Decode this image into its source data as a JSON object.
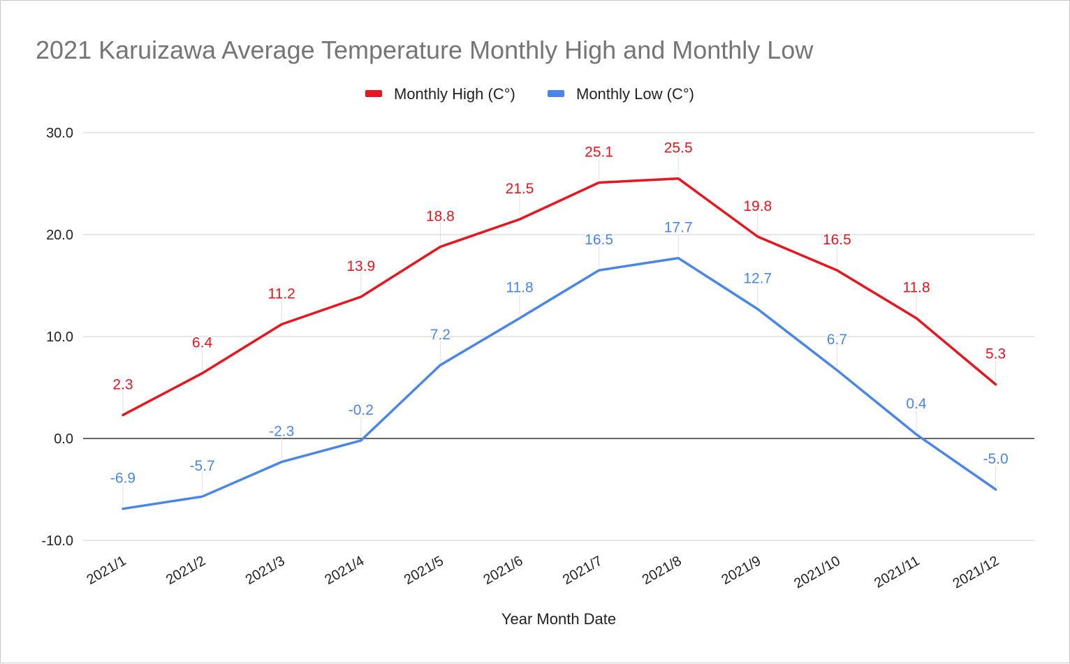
{
  "chart_data": {
    "type": "line",
    "title": "2021 Karuizawa Average Temperature Monthly High and Monthly Low",
    "xlabel": "Year Month Date",
    "ylabel": "",
    "categories": [
      "2021/1",
      "2021/2",
      "2021/3",
      "2021/4",
      "2021/5",
      "2021/6",
      "2021/7",
      "2021/8",
      "2021/9",
      "2021/10",
      "2021/11",
      "2021/12"
    ],
    "ylim": [
      -10,
      30
    ],
    "yticks": [
      "30.0",
      "20.0",
      "10.0",
      "0.0",
      "-10.0"
    ],
    "grid": true,
    "legend_position": "top-center",
    "series": [
      {
        "name": "Monthly High (C°)",
        "color": "#e8141e",
        "values": [
          2.3,
          6.4,
          11.2,
          13.9,
          18.8,
          21.5,
          25.1,
          25.5,
          19.8,
          16.5,
          11.8,
          5.3
        ],
        "labels": [
          "2.3",
          "6.4",
          "11.2",
          "13.9",
          "18.8",
          "21.5",
          "25.1",
          "25.5",
          "19.8",
          "16.5",
          "11.8",
          "5.3"
        ]
      },
      {
        "name": "Monthly Low (C°)",
        "color": "#4a86e8",
        "values": [
          -6.9,
          -5.7,
          -2.3,
          -0.2,
          7.2,
          11.8,
          16.5,
          17.7,
          12.7,
          6.7,
          0.4,
          -5.0
        ],
        "labels": [
          "-6.9",
          "-5.7",
          "-2.3",
          "-0.2",
          "7.2",
          "11.8",
          "16.5",
          "17.7",
          "12.7",
          "6.7",
          "0.4",
          "-5.0"
        ]
      }
    ]
  }
}
